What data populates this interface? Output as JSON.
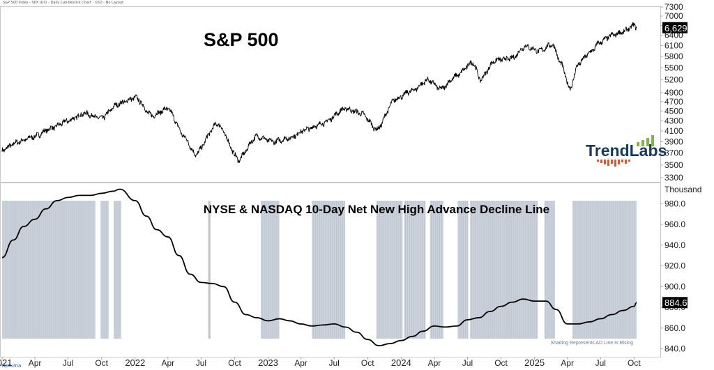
{
  "header_text": "S&P 500 Index - SPX (US) - Daily Candlestick Chart - USD - No Layout",
  "watermark": "Optuma",
  "logo": {
    "text": "TrendLabs",
    "text_color": "#1a3a5c",
    "accent": "#e8542a",
    "bar_color": "#7ab648"
  },
  "chart_data": [
    {
      "type": "line",
      "title": "S&P 500",
      "x_unit": "date",
      "y_ticks": [
        3300,
        3500,
        3700,
        3900,
        4100,
        4300,
        4500,
        4700,
        4900,
        5200,
        5500,
        5800,
        6100,
        6400,
        6700,
        7000,
        7300
      ],
      "last_value_label": "6,629",
      "x": [
        "2021-01-01",
        "2021-02-15",
        "2021-04-01",
        "2021-05-15",
        "2021-07-01",
        "2021-08-15",
        "2021-10-01",
        "2021-11-15",
        "2022-01-03",
        "2022-02-15",
        "2022-04-01",
        "2022-05-15",
        "2022-06-16",
        "2022-08-15",
        "2022-10-12",
        "2022-11-30",
        "2023-01-15",
        "2023-03-01",
        "2023-04-15",
        "2023-06-01",
        "2023-07-31",
        "2023-09-15",
        "2023-10-27",
        "2023-12-15",
        "2024-02-01",
        "2024-03-15",
        "2024-04-19",
        "2024-06-01",
        "2024-07-16",
        "2024-08-05",
        "2024-09-15",
        "2024-11-01",
        "2024-12-06",
        "2025-01-15",
        "2025-02-19",
        "2025-03-15",
        "2025-04-08",
        "2025-05-01",
        "2025-06-01",
        "2025-07-01",
        "2025-08-01",
        "2025-09-01",
        "2025-10-01",
        "2025-10-08"
      ],
      "values": [
        3750,
        3900,
        4000,
        4150,
        4300,
        4450,
        4350,
        4650,
        4790,
        4400,
        4550,
        4000,
        3670,
        4250,
        3580,
        4000,
        3900,
        3970,
        4130,
        4250,
        4550,
        4450,
        4120,
        4750,
        4950,
        5200,
        4980,
        5300,
        5650,
        5200,
        5700,
        5750,
        6080,
        5950,
        6140,
        5600,
        4980,
        5600,
        5900,
        6200,
        6400,
        6500,
        6700,
        6629
      ],
      "y_range": [
        3300,
        7300
      ],
      "scale": "log"
    },
    {
      "type": "line",
      "title": "NYSE & NASDAQ 10-Day Net New High Advance Decline Line",
      "ylabel": "Thousand",
      "annotation": "Shading Represents AD Line Is Rising",
      "last_value_label": "884.6",
      "x_ticks": [
        "2021",
        "Apr",
        "Jul",
        "Oct",
        "2022",
        "Apr",
        "Jul",
        "Oct",
        "2023",
        "Apr",
        "Jul",
        "Oct",
        "2024",
        "Apr",
        "Jul",
        "Oct",
        "2025",
        "Apr",
        "Jul",
        "Oct"
      ],
      "y_ticks": [
        840.0,
        860.0,
        880.0,
        900.0,
        920.0,
        940.0,
        960.0,
        980.0
      ],
      "y_range": [
        833,
        995
      ],
      "x": [
        "2021-01-01",
        "2021-02-01",
        "2021-03-01",
        "2021-04-01",
        "2021-05-01",
        "2021-06-01",
        "2021-07-01",
        "2021-08-01",
        "2021-09-01",
        "2021-10-01",
        "2021-11-01",
        "2021-11-20",
        "2022-01-01",
        "2022-02-01",
        "2022-03-01",
        "2022-04-01",
        "2022-05-01",
        "2022-06-01",
        "2022-07-01",
        "2022-08-01",
        "2022-09-01",
        "2022-10-01",
        "2022-11-01",
        "2022-12-01",
        "2023-01-01",
        "2023-02-01",
        "2023-03-01",
        "2023-04-01",
        "2023-05-01",
        "2023-06-01",
        "2023-07-01",
        "2023-08-01",
        "2023-09-01",
        "2023-10-01",
        "2023-11-01",
        "2023-12-01",
        "2024-01-01",
        "2024-02-01",
        "2024-03-01",
        "2024-04-01",
        "2024-05-01",
        "2024-06-01",
        "2024-07-01",
        "2024-08-01",
        "2024-09-01",
        "2024-10-01",
        "2024-11-01",
        "2024-12-01",
        "2025-01-01",
        "2025-02-01",
        "2025-03-01",
        "2025-04-01",
        "2025-05-01",
        "2025-06-01",
        "2025-07-01",
        "2025-08-01",
        "2025-09-01",
        "2025-10-01",
        "2025-10-08"
      ],
      "values": [
        928,
        945,
        958,
        965,
        975,
        983,
        986,
        988,
        988,
        990,
        992,
        994,
        983,
        968,
        955,
        948,
        930,
        912,
        904,
        903,
        900,
        885,
        873,
        870,
        867,
        869,
        867,
        864,
        862,
        863,
        864,
        861,
        856,
        849,
        843,
        845,
        848,
        852,
        857,
        862,
        861,
        862,
        868,
        870,
        876,
        881,
        885,
        888,
        886,
        886,
        878,
        864,
        864,
        866,
        869,
        873,
        877,
        881,
        884.6
      ],
      "shaded_periods": [
        [
          "2021-01-01",
          "2021-09-14"
        ],
        [
          "2021-09-28",
          "2021-10-20"
        ],
        [
          "2021-11-03",
          "2021-11-24"
        ],
        [
          "2022-07-20",
          "2022-07-27"
        ],
        [
          "2022-12-12",
          "2023-01-31"
        ],
        [
          "2023-05-01",
          "2023-07-31"
        ],
        [
          "2023-10-25",
          "2024-01-05"
        ],
        [
          "2024-01-09",
          "2024-03-08"
        ],
        [
          "2024-03-20",
          "2024-04-26"
        ],
        [
          "2024-06-04",
          "2024-07-03"
        ],
        [
          "2024-07-08",
          "2025-01-10"
        ],
        [
          "2025-01-28",
          "2025-02-26"
        ],
        [
          "2025-04-15",
          "2025-10-08"
        ]
      ]
    }
  ],
  "colors": {
    "line": "#000000",
    "shade": "#cbd2dc",
    "shade_line": "#b4bcc7",
    "label_bg": "#000000",
    "label_text": "#ffffff",
    "axis_text": "#222222",
    "gridline": "#aaaaaa"
  }
}
